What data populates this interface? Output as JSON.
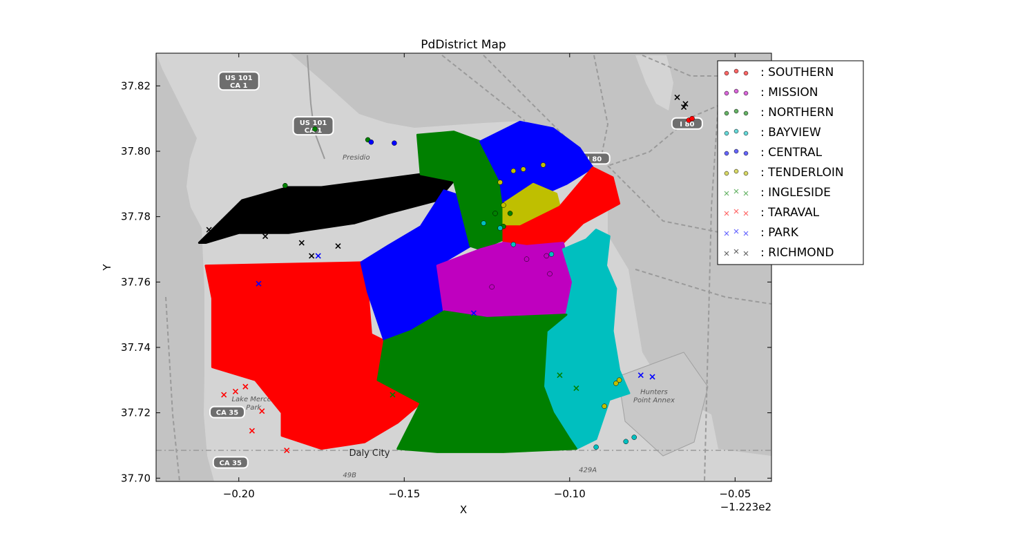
{
  "chart_data": {
    "type": "scatter",
    "title": "PdDistrict Map",
    "xlabel": "X",
    "ylabel": "Y",
    "x_offset_label": "−1.223e2",
    "xlim": [
      -0.225,
      -0.039
    ],
    "ylim": [
      37.699,
      37.83
    ],
    "xticks": [
      -0.2,
      -0.15,
      -0.1,
      -0.05
    ],
    "xtick_labels": [
      "−0.20",
      "−0.15",
      "−0.10",
      "−0.05"
    ],
    "yticks": [
      37.7,
      37.72,
      37.74,
      37.76,
      37.78,
      37.8,
      37.82
    ],
    "ytick_labels": [
      "37.70",
      "37.72",
      "37.74",
      "37.76",
      "37.78",
      "37.80",
      "37.82"
    ],
    "legend_position": "top-right outside",
    "background": "grayscale street map of San Francisco",
    "map_labels": [
      {
        "text": "US 101",
        "sub": "CA 1",
        "x": -0.2,
        "y": 37.8215
      },
      {
        "text": "US 101",
        "sub": "CA 1",
        "x": -0.1775,
        "y": 37.8078
      },
      {
        "text": "I 80",
        "sub": "",
        "x": -0.0925,
        "y": 37.7978
      },
      {
        "text": "I 80",
        "sub": "",
        "x": -0.0645,
        "y": 37.8085
      },
      {
        "text": "CA 35",
        "sub": "",
        "x": -0.2035,
        "y": 37.7202
      },
      {
        "text": "CA 35",
        "sub": "",
        "x": -0.2025,
        "y": 37.7048
      },
      {
        "text": "Presidio",
        "sub": "",
        "x": -0.1645,
        "y": 37.7975
      },
      {
        "text": "Daly City",
        "sub": "",
        "x": -0.1605,
        "y": 37.7068
      },
      {
        "text": "Lake Merced",
        "sub": "Park",
        "x": -0.1955,
        "y": 37.7235
      },
      {
        "text": "Hunters",
        "sub": "Point Annex",
        "x": -0.0745,
        "y": 37.7257
      },
      {
        "text": "429A",
        "sub": "",
        "x": -0.0945,
        "y": 37.7018
      },
      {
        "text": "49B",
        "sub": "",
        "x": -0.1665,
        "y": 37.7003
      }
    ],
    "series": [
      {
        "name": ": SOUTHERN",
        "marker": "o",
        "color": "#ff0000"
      },
      {
        "name": ": MISSION",
        "marker": "o",
        "color": "#bf00bf"
      },
      {
        "name": ": NORTHERN",
        "marker": "o",
        "color": "#008000"
      },
      {
        "name": ": BAYVIEW",
        "marker": "o",
        "color": "#00bfbf"
      },
      {
        "name": ": CENTRAL",
        "marker": "o",
        "color": "#0000ff"
      },
      {
        "name": ": TENDERLOIN",
        "marker": "o",
        "color": "#bfbf00"
      },
      {
        "name": ": INGLESIDE",
        "marker": "x",
        "color": "#008000"
      },
      {
        "name": ": TARAVAL",
        "marker": "x",
        "color": "#ff0000"
      },
      {
        "name": ": PARK",
        "marker": "x",
        "color": "#0000ff"
      },
      {
        "name": ": RICHMOND",
        "marker": "x",
        "color": "#000000"
      }
    ],
    "regions": [
      {
        "series": ": RICHMOND",
        "polygon": [
          [
            -0.212,
            37.772
          ],
          [
            -0.199,
            37.785
          ],
          [
            -0.185,
            37.789
          ],
          [
            -0.175,
            37.789
          ],
          [
            -0.16,
            37.791
          ],
          [
            -0.145,
            37.793
          ],
          [
            -0.138,
            37.795
          ],
          [
            -0.135,
            37.791
          ],
          [
            -0.14,
            37.785
          ],
          [
            -0.155,
            37.781
          ],
          [
            -0.165,
            37.778
          ],
          [
            -0.185,
            37.775
          ],
          [
            -0.2,
            37.775
          ],
          [
            -0.21,
            37.772
          ]
        ]
      },
      {
        "series": ": TARAVAL",
        "polygon": [
          [
            -0.21,
            37.765
          ],
          [
            -0.163,
            37.766
          ],
          [
            -0.161,
            37.757
          ],
          [
            -0.16,
            37.744
          ],
          [
            -0.156,
            37.742
          ],
          [
            -0.145,
            37.723
          ],
          [
            -0.152,
            37.717
          ],
          [
            -0.162,
            37.711
          ],
          [
            -0.175,
            37.709
          ],
          [
            -0.187,
            37.713
          ],
          [
            -0.187,
            37.72
          ],
          [
            -0.195,
            37.73
          ],
          [
            -0.208,
            37.734
          ],
          [
            -0.208,
            37.755
          ]
        ]
      },
      {
        "series": ": PARK",
        "polygon": [
          [
            -0.163,
            37.766
          ],
          [
            -0.155,
            37.771
          ],
          [
            -0.145,
            37.777
          ],
          [
            -0.138,
            37.788
          ],
          [
            -0.132,
            37.786
          ],
          [
            -0.13,
            37.771
          ],
          [
            -0.14,
            37.765
          ],
          [
            -0.138,
            37.751
          ],
          [
            -0.148,
            37.745
          ],
          [
            -0.156,
            37.742
          ],
          [
            -0.161,
            37.757
          ]
        ]
      },
      {
        "series": ": NORTHERN",
        "polygon": [
          [
            -0.146,
            37.805
          ],
          [
            -0.135,
            37.806
          ],
          [
            -0.127,
            37.803
          ],
          [
            -0.121,
            37.791
          ],
          [
            -0.12,
            37.784
          ],
          [
            -0.12,
            37.773
          ],
          [
            -0.127,
            37.77
          ],
          [
            -0.13,
            37.771
          ],
          [
            -0.135,
            37.791
          ],
          [
            -0.145,
            37.793
          ]
        ]
      },
      {
        "series": ": CENTRAL",
        "polygon": [
          [
            -0.127,
            37.803
          ],
          [
            -0.115,
            37.809
          ],
          [
            -0.105,
            37.807
          ],
          [
            -0.097,
            37.801
          ],
          [
            -0.093,
            37.795
          ],
          [
            -0.101,
            37.79
          ],
          [
            -0.11,
            37.786
          ],
          [
            -0.115,
            37.783
          ],
          [
            -0.12,
            37.784
          ],
          [
            -0.121,
            37.791
          ]
        ]
      },
      {
        "series": ": TENDERLOIN",
        "polygon": [
          [
            -0.12,
            37.784
          ],
          [
            -0.111,
            37.79
          ],
          [
            -0.104,
            37.787
          ],
          [
            -0.103,
            37.783
          ],
          [
            -0.115,
            37.777
          ],
          [
            -0.12,
            37.777
          ]
        ]
      },
      {
        "series": ": SOUTHERN",
        "polygon": [
          [
            -0.12,
            37.772
          ],
          [
            -0.12,
            37.777
          ],
          [
            -0.115,
            37.777
          ],
          [
            -0.103,
            37.783
          ],
          [
            -0.093,
            37.795
          ],
          [
            -0.087,
            37.792
          ],
          [
            -0.085,
            37.784
          ],
          [
            -0.096,
            37.778
          ],
          [
            -0.102,
            37.772
          ],
          [
            -0.113,
            37.771
          ]
        ]
      },
      {
        "series": ": MISSION",
        "polygon": [
          [
            -0.127,
            37.77
          ],
          [
            -0.12,
            37.772
          ],
          [
            -0.113,
            37.771
          ],
          [
            -0.102,
            37.772
          ],
          [
            -0.101,
            37.768
          ],
          [
            -0.099,
            37.76
          ],
          [
            -0.101,
            37.75
          ],
          [
            -0.115,
            37.75
          ],
          [
            -0.125,
            37.749
          ],
          [
            -0.138,
            37.751
          ],
          [
            -0.14,
            37.765
          ]
        ]
      },
      {
        "series": ": BAYVIEW",
        "polygon": [
          [
            -0.102,
            37.77
          ],
          [
            -0.095,
            37.773
          ],
          [
            -0.092,
            37.776
          ],
          [
            -0.088,
            37.774
          ],
          [
            -0.089,
            37.765
          ],
          [
            -0.086,
            37.758
          ],
          [
            -0.087,
            37.745
          ],
          [
            -0.085,
            37.733
          ],
          [
            -0.082,
            37.726
          ],
          [
            -0.088,
            37.724
          ],
          [
            -0.092,
            37.712
          ],
          [
            -0.098,
            37.709
          ],
          [
            -0.102,
            37.711
          ],
          [
            -0.105,
            37.72
          ],
          [
            -0.108,
            37.728
          ],
          [
            -0.107,
            37.745
          ],
          [
            -0.101,
            37.75
          ],
          [
            -0.099,
            37.76
          ]
        ]
      },
      {
        "series": ": INGLESIDE",
        "polygon": [
          [
            -0.156,
            37.742
          ],
          [
            -0.148,
            37.745
          ],
          [
            -0.138,
            37.751
          ],
          [
            -0.125,
            37.749
          ],
          [
            -0.101,
            37.75
          ],
          [
            -0.107,
            37.745
          ],
          [
            -0.108,
            37.728
          ],
          [
            -0.105,
            37.72
          ],
          [
            -0.1,
            37.712
          ],
          [
            -0.098,
            37.709
          ],
          [
            -0.12,
            37.708
          ],
          [
            -0.14,
            37.708
          ],
          [
            -0.152,
            37.709
          ],
          [
            -0.145,
            37.723
          ],
          [
            -0.158,
            37.73
          ]
        ]
      }
    ],
    "scatter_points": [
      {
        "series": ": RICHMOND",
        "x": -0.0675,
        "y": 37.8165
      },
      {
        "series": ": RICHMOND",
        "x": -0.0655,
        "y": 37.8135
      },
      {
        "series": ": RICHMOND",
        "x": -0.065,
        "y": 37.8145
      },
      {
        "series": ": RICHMOND",
        "x": -0.209,
        "y": 37.776
      },
      {
        "series": ": RICHMOND",
        "x": -0.192,
        "y": 37.774
      },
      {
        "series": ": RICHMOND",
        "x": -0.181,
        "y": 37.772
      },
      {
        "series": ": RICHMOND",
        "x": -0.17,
        "y": 37.771
      },
      {
        "series": ": RICHMOND",
        "x": -0.186,
        "y": 37.784
      },
      {
        "series": ": RICHMOND",
        "x": -0.178,
        "y": 37.768
      },
      {
        "series": ": SOUTHERN",
        "x": -0.064,
        "y": 37.8095
      },
      {
        "series": ": SOUTHERN",
        "x": -0.063,
        "y": 37.81
      },
      {
        "series": ": NORTHERN",
        "x": -0.177,
        "y": 37.8068
      },
      {
        "series": ": NORTHERN",
        "x": -0.186,
        "y": 37.7895
      },
      {
        "series": ": NORTHERN",
        "x": -0.161,
        "y": 37.8035
      },
      {
        "series": ": NORTHERN",
        "x": -0.12,
        "y": 37.777
      },
      {
        "series": ": NORTHERN",
        "x": -0.1225,
        "y": 37.781
      },
      {
        "series": ": NORTHERN",
        "x": -0.118,
        "y": 37.781
      },
      {
        "series": ": CENTRAL",
        "x": -0.153,
        "y": 37.8025
      },
      {
        "series": ": CENTRAL",
        "x": -0.16,
        "y": 37.8028
      },
      {
        "series": ": TENDERLOIN",
        "x": -0.117,
        "y": 37.794
      },
      {
        "series": ": TENDERLOIN",
        "x": -0.114,
        "y": 37.7945
      },
      {
        "series": ": TENDERLOIN",
        "x": -0.108,
        "y": 37.7958
      },
      {
        "series": ": TENDERLOIN",
        "x": -0.121,
        "y": 37.7905
      },
      {
        "series": ": TENDERLOIN",
        "x": -0.12,
        "y": 37.7835
      },
      {
        "series": ": TENDERLOIN",
        "x": -0.086,
        "y": 37.729
      },
      {
        "series": ": TENDERLOIN",
        "x": -0.085,
        "y": 37.73
      },
      {
        "series": ": TENDERLOIN",
        "x": -0.0895,
        "y": 37.722
      },
      {
        "series": ": BAYVIEW",
        "x": -0.126,
        "y": 37.778
      },
      {
        "series": ": BAYVIEW",
        "x": -0.121,
        "y": 37.7765
      },
      {
        "series": ": BAYVIEW",
        "x": -0.117,
        "y": 37.7715
      },
      {
        "series": ": BAYVIEW",
        "x": -0.1055,
        "y": 37.7685
      },
      {
        "series": ": BAYVIEW",
        "x": -0.083,
        "y": 37.7112
      },
      {
        "series": ": BAYVIEW",
        "x": -0.0805,
        "y": 37.7125
      },
      {
        "series": ": BAYVIEW",
        "x": -0.092,
        "y": 37.7095
      },
      {
        "series": ": MISSION",
        "x": -0.113,
        "y": 37.767
      },
      {
        "series": ": MISSION",
        "x": -0.107,
        "y": 37.768
      },
      {
        "series": ": MISSION",
        "x": -0.106,
        "y": 37.7625
      },
      {
        "series": ": MISSION",
        "x": -0.1235,
        "y": 37.7585
      },
      {
        "series": ": PARK",
        "x": -0.075,
        "y": 37.731
      },
      {
        "series": ": PARK",
        "x": -0.0785,
        "y": 37.7315
      },
      {
        "series": ": PARK",
        "x": -0.194,
        "y": 37.7595
      },
      {
        "series": ": PARK",
        "x": -0.176,
        "y": 37.768
      },
      {
        "series": ": PARK",
        "x": -0.129,
        "y": 37.7505
      },
      {
        "series": ": INGLESIDE",
        "x": -0.137,
        "y": 37.7165
      },
      {
        "series": ": INGLESIDE",
        "x": -0.103,
        "y": 37.7315
      },
      {
        "series": ": INGLESIDE",
        "x": -0.098,
        "y": 37.7275
      },
      {
        "series": ": INGLESIDE",
        "x": -0.1535,
        "y": 37.7255
      },
      {
        "series": ": TARAVAL",
        "x": -0.198,
        "y": 37.728
      },
      {
        "series": ": TARAVAL",
        "x": -0.201,
        "y": 37.7265
      },
      {
        "series": ": TARAVAL",
        "x": -0.193,
        "y": 37.7205
      },
      {
        "series": ": TARAVAL",
        "x": -0.196,
        "y": 37.7145
      },
      {
        "series": ": TARAVAL",
        "x": -0.2045,
        "y": 37.7255
      },
      {
        "series": ": TARAVAL",
        "x": -0.1855,
        "y": 37.7085
      },
      {
        "series": ": TARAVAL",
        "x": -0.0875,
        "y": 37.7895
      }
    ]
  }
}
